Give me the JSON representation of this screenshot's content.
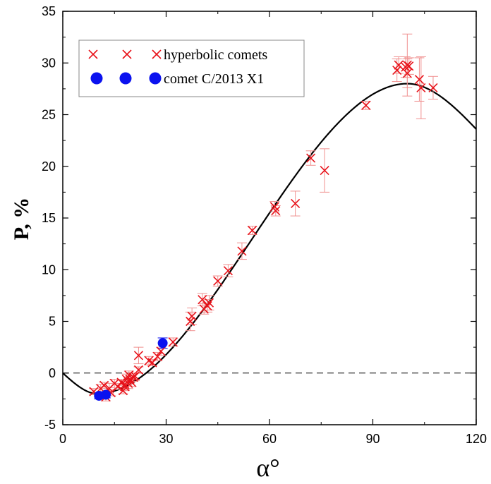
{
  "chart_data": {
    "type": "scatter",
    "title": "",
    "xlabel": "α°",
    "ylabel": "P, %",
    "xlim": [
      0,
      120
    ],
    "ylim": [
      -5,
      35
    ],
    "xticks": [
      "0",
      "30",
      "60",
      "90",
      "120"
    ],
    "yticks": [
      "-5",
      "0",
      "5",
      "10",
      "15",
      "20",
      "25",
      "30",
      "35"
    ],
    "grid": false,
    "legend_position": "top-left",
    "zero_line": {
      "y": 0,
      "style": "dashed"
    },
    "series": [
      {
        "name": "hyperbolic comets",
        "marker": "x",
        "color": "#e8121a",
        "errorbar_color": "#f0908f",
        "points": [
          {
            "x": 9.0,
            "y": -1.8,
            "yerr": 0.3
          },
          {
            "x": 11.0,
            "y": -1.5,
            "yerr": 0.4
          },
          {
            "x": 12.0,
            "y": -1.2,
            "yerr": 0.3
          },
          {
            "x": 12.5,
            "y": -2.3,
            "yerr": 0.4
          },
          {
            "x": 13.5,
            "y": -1.5,
            "yerr": 0.5
          },
          {
            "x": 14.0,
            "y": -1.9,
            "yerr": 0.3
          },
          {
            "x": 15.0,
            "y": -1.0,
            "yerr": 0.4
          },
          {
            "x": 16.0,
            "y": -1.3,
            "yerr": 0.3
          },
          {
            "x": 17.0,
            "y": -0.9,
            "yerr": 0.3
          },
          {
            "x": 17.5,
            "y": -1.7,
            "yerr": 0.3
          },
          {
            "x": 18.0,
            "y": -1.1,
            "yerr": 0.5
          },
          {
            "x": 18.0,
            "y": -1.3,
            "yerr": 0.4
          },
          {
            "x": 18.5,
            "y": -0.6,
            "yerr": 0.5
          },
          {
            "x": 19.0,
            "y": -1.0,
            "yerr": 0.5
          },
          {
            "x": 19.2,
            "y": -0.2,
            "yerr": 0.4
          },
          {
            "x": 19.5,
            "y": -0.6,
            "yerr": 0.3
          },
          {
            "x": 20.0,
            "y": -0.9,
            "yerr": 0.4
          },
          {
            "x": 20.5,
            "y": -0.4,
            "yerr": 0.4
          },
          {
            "x": 21.0,
            "y": -0.3,
            "yerr": 0.3
          },
          {
            "x": 22.0,
            "y": 0.3,
            "yerr": 0.3
          },
          {
            "x": 22.0,
            "y": 1.7,
            "yerr": 0.8
          },
          {
            "x": 25.0,
            "y": 1.2,
            "yerr": 0.4
          },
          {
            "x": 26.0,
            "y": 1.0,
            "yerr": 0.3
          },
          {
            "x": 27.5,
            "y": 1.6,
            "yerr": 0.4
          },
          {
            "x": 28.5,
            "y": 2.1,
            "yerr": 0.4
          },
          {
            "x": 32.0,
            "y": 3.0,
            "yerr": 0.4
          },
          {
            "x": 37.0,
            "y": 5.0,
            "yerr": 0.9
          },
          {
            "x": 37.5,
            "y": 5.5,
            "yerr": 0.8
          },
          {
            "x": 40.5,
            "y": 7.1,
            "yerr": 0.6
          },
          {
            "x": 41.0,
            "y": 6.2,
            "yerr": 0.5
          },
          {
            "x": 42.0,
            "y": 6.5,
            "yerr": 0.6
          },
          {
            "x": 42.5,
            "y": 6.8,
            "yerr": 0.7
          },
          {
            "x": 45.0,
            "y": 8.9,
            "yerr": 0.5
          },
          {
            "x": 48.0,
            "y": 9.9,
            "yerr": 0.6
          },
          {
            "x": 52.0,
            "y": 11.8,
            "yerr": 0.8
          },
          {
            "x": 55.0,
            "y": 13.8,
            "yerr": 0.4
          },
          {
            "x": 61.5,
            "y": 16.1,
            "yerr": 0.5
          },
          {
            "x": 61.8,
            "y": 15.7,
            "yerr": 0.5
          },
          {
            "x": 67.5,
            "y": 16.4,
            "yerr": 1.2
          },
          {
            "x": 72.0,
            "y": 20.8,
            "yerr": 0.7
          },
          {
            "x": 76.0,
            "y": 19.6,
            "yerr": 2.1
          },
          {
            "x": 88.0,
            "y": 25.9,
            "yerr": 0.4
          },
          {
            "x": 97.0,
            "y": 29.3,
            "yerr": 1.1
          },
          {
            "x": 97.5,
            "y": 29.8,
            "yerr": 0.8
          },
          {
            "x": 99.5,
            "y": 29.6,
            "yerr": 1.0
          },
          {
            "x": 100.0,
            "y": 29.0,
            "yerr": 1.4
          },
          {
            "x": 100.0,
            "y": 29.8,
            "yerr": 3.0
          },
          {
            "x": 100.5,
            "y": 29.7,
            "yerr": 0.8
          },
          {
            "x": 103.5,
            "y": 28.4,
            "yerr": 2.1
          },
          {
            "x": 104.0,
            "y": 27.6,
            "yerr": 3.0
          },
          {
            "x": 107.5,
            "y": 27.6,
            "yerr": 1.1
          }
        ]
      },
      {
        "name": "comet C/2013 X1",
        "marker": "filled-circle",
        "color": "#0b12ef",
        "points": [
          {
            "x": 10.5,
            "y": -2.2,
            "yerr": 0.3
          },
          {
            "x": 12.5,
            "y": -2.1,
            "yerr": 0.3
          },
          {
            "x": 29.0,
            "y": 2.9,
            "yerr": 0.5
          }
        ]
      },
      {
        "name": "",
        "type": "line",
        "color": "#000000",
        "function": "phase-curve",
        "x_range": [
          0,
          120
        ],
        "y_at_0": 0,
        "minimum": {
          "x": 10,
          "y": -2.0
        },
        "maximum": {
          "x": 100,
          "y": 28.0
        },
        "y_at_120": 23.6
      }
    ]
  }
}
